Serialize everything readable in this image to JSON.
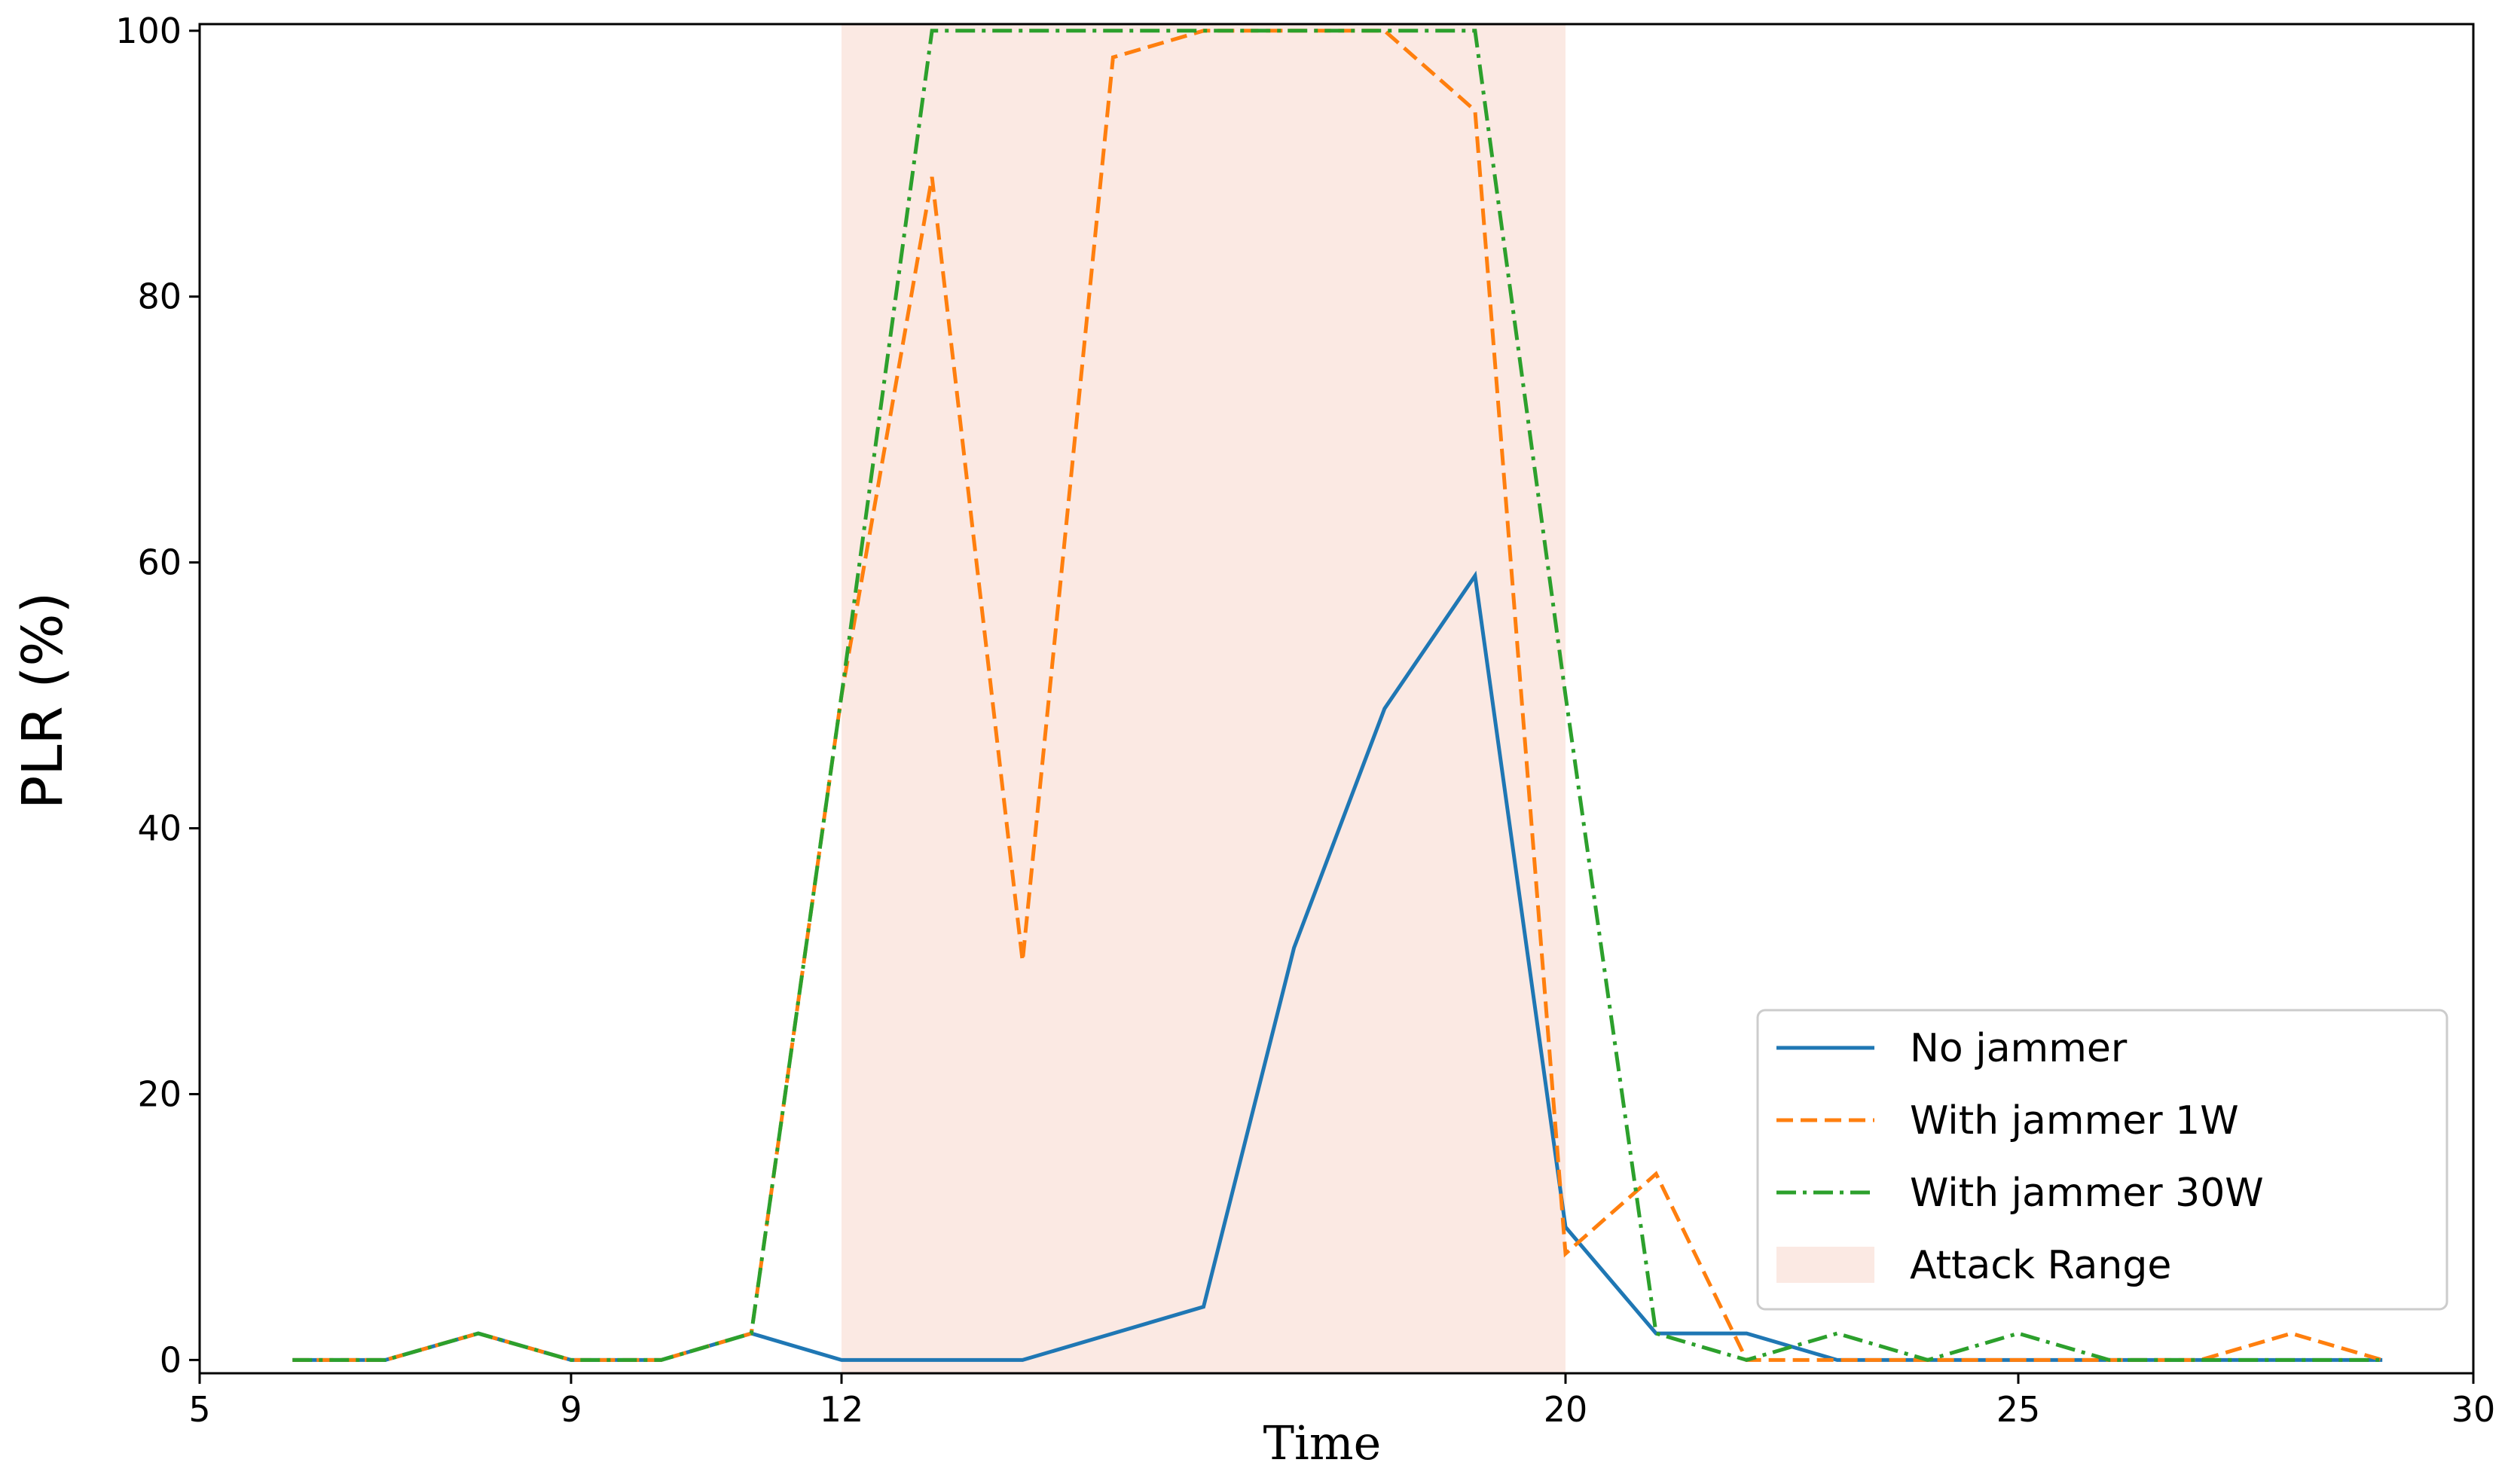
{
  "chart_data": {
    "type": "line",
    "xlabel": "Time",
    "ylabel": "PLR (%)",
    "xlim": [
      5,
      30
    ],
    "ylim": [
      -1,
      100.5
    ],
    "xticks": [
      5,
      9,
      12,
      20,
      25,
      30
    ],
    "yticks": [
      0,
      20,
      40,
      60,
      80,
      100
    ],
    "x": [
      6,
      7,
      8,
      9,
      10,
      11,
      12,
      13,
      14,
      15,
      16,
      17,
      18,
      19,
      20,
      21,
      22,
      23,
      24,
      25,
      26,
      27,
      28,
      29
    ],
    "series": [
      {
        "name": "No jammer",
        "color": "#1f77b4",
        "style": "solid",
        "values": [
          0,
          0,
          2,
          0,
          0,
          2,
          0,
          0,
          0,
          2,
          4,
          31,
          49,
          59,
          10,
          2,
          2,
          0,
          0,
          0,
          0,
          0,
          0,
          0
        ]
      },
      {
        "name": "With jammer 1W",
        "color": "#ff7f0e",
        "style": "dashed",
        "values": [
          0,
          0,
          2,
          0,
          0,
          2,
          50,
          89,
          30,
          98,
          100,
          100,
          100,
          94,
          8,
          14,
          0,
          0,
          0,
          0,
          0,
          0,
          2,
          0
        ]
      },
      {
        "name": "With jammer 30W",
        "color": "#2ca02c",
        "style": "dashdot",
        "values": [
          0,
          0,
          2,
          0,
          0,
          2,
          50,
          100,
          100,
          100,
          100,
          100,
          100,
          100,
          50,
          2,
          0,
          2,
          0,
          2,
          0,
          0,
          0,
          0
        ]
      }
    ],
    "shaded_range": {
      "name": "Attack Range",
      "x_start": 12,
      "x_end": 20,
      "color": "#fbe9e3"
    },
    "legend_position": "lower-right",
    "grid": false
  }
}
